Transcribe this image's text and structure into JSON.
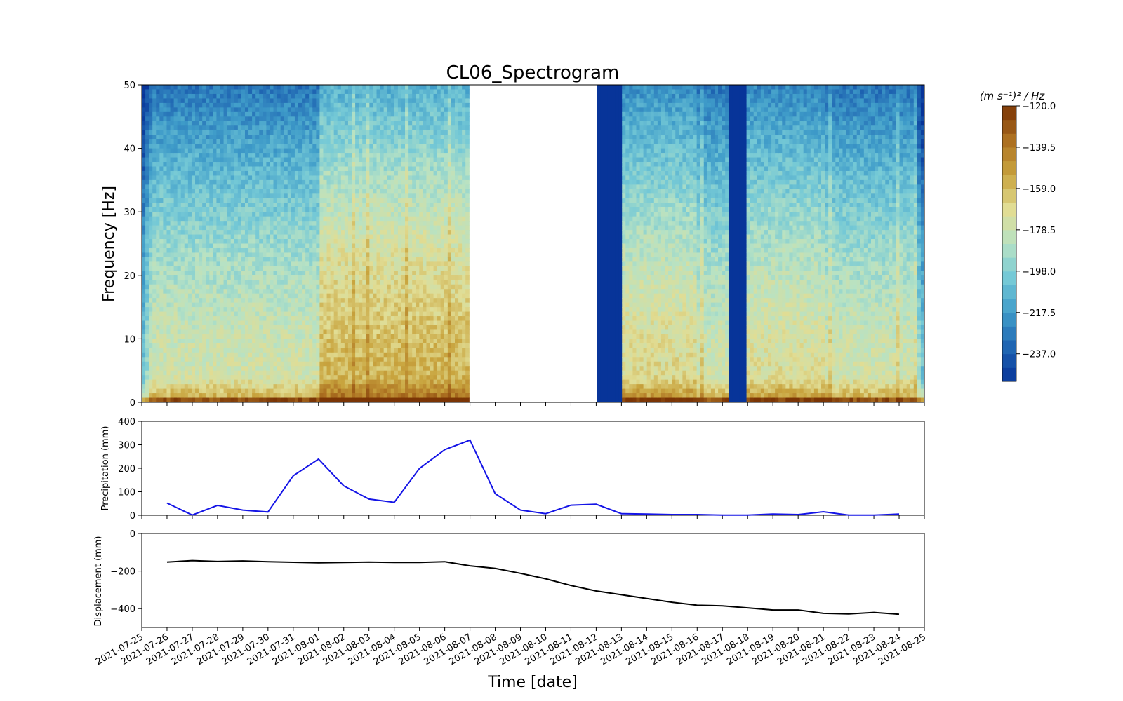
{
  "chart_data": [
    {
      "type": "heatmap",
      "title": "CL06_Spectrogram",
      "xlabel": "",
      "ylabel": "Frequency [Hz]",
      "ylim": [
        0,
        50
      ],
      "yticks": [
        0,
        10,
        20,
        30,
        40,
        50
      ],
      "colorbar": {
        "label": "(m s⁻¹)² / Hz",
        "ticks": [
          "−120.0",
          "−139.5",
          "−159.0",
          "−178.5",
          "−198.0",
          "−217.5",
          "−237.0"
        ],
        "range": [
          -250,
          -120
        ],
        "colormap": [
          "#073499",
          "#1f65b2",
          "#3f9cc9",
          "#75c9d6",
          "#b7e2c4",
          "#e1dd94",
          "#c9a53f",
          "#ac7021",
          "#7b3505"
        ]
      },
      "gaps": [
        {
          "type": "no-data",
          "start": "2021-08-07",
          "end": "2021-08-12"
        },
        {
          "type": "blue-band",
          "start": "2021-08-12",
          "end": "2021-08-13"
        },
        {
          "type": "blue-band",
          "start": "2021-08-17.2",
          "end": "2021-08-18"
        }
      ]
    },
    {
      "type": "line",
      "xlabel": "",
      "ylabel": "Precipitation (mm)",
      "ylim": [
        0,
        400
      ],
      "yticks": [
        0,
        100,
        200,
        300,
        400
      ],
      "series": [
        {
          "color": "#1414e6",
          "x": [
            "2021-07-26",
            "2021-07-27",
            "2021-07-28",
            "2021-07-29",
            "2021-07-30",
            "2021-07-31",
            "2021-08-01",
            "2021-08-02",
            "2021-08-03",
            "2021-08-04",
            "2021-08-05",
            "2021-08-06",
            "2021-08-07",
            "2021-08-08",
            "2021-08-09",
            "2021-08-10",
            "2021-08-11",
            "2021-08-12",
            "2021-08-13",
            "2021-08-14",
            "2021-08-15",
            "2021-08-16",
            "2021-08-17",
            "2021-08-18",
            "2021-08-19",
            "2021-08-20",
            "2021-08-21",
            "2021-08-22",
            "2021-08-23",
            "2021-08-24"
          ],
          "values": [
            52,
            1,
            42,
            22,
            14,
            168,
            239,
            125,
            69,
            55,
            199,
            279,
            320,
            92,
            22,
            7,
            43,
            47,
            7,
            5,
            3,
            3,
            1,
            1,
            5,
            3,
            15,
            1,
            1,
            5
          ]
        }
      ]
    },
    {
      "type": "line",
      "xlabel": "Time [date]",
      "ylabel": "Displacement (mm)",
      "ylim": [
        -500,
        0
      ],
      "yticks": [
        0,
        -200,
        -400
      ],
      "ytick_labels": [
        "0",
        "−200",
        "−400"
      ],
      "series": [
        {
          "color": "#000000",
          "x": [
            "2021-07-26",
            "2021-07-27",
            "2021-07-28",
            "2021-07-29",
            "2021-07-30",
            "2021-07-31",
            "2021-08-01",
            "2021-08-02",
            "2021-08-03",
            "2021-08-04",
            "2021-08-05",
            "2021-08-06",
            "2021-08-07",
            "2021-08-08",
            "2021-08-09",
            "2021-08-10",
            "2021-08-11",
            "2021-08-12",
            "2021-08-13",
            "2021-08-14",
            "2021-08-15",
            "2021-08-16",
            "2021-08-17",
            "2021-08-18",
            "2021-08-19",
            "2021-08-20",
            "2021-08-21",
            "2021-08-22",
            "2021-08-23",
            "2021-08-24"
          ],
          "values": [
            -152,
            -144,
            -149,
            -146,
            -150,
            -153,
            -156,
            -154,
            -152,
            -154,
            -154,
            -150,
            -172,
            -186,
            -212,
            -241,
            -277,
            -306,
            -326,
            -346,
            -366,
            -382,
            -385,
            -396,
            -407,
            -407,
            -425,
            -428,
            -420,
            -430
          ]
        }
      ],
      "xtick_labels": [
        "2021-07-25",
        "2021-07-26",
        "2021-07-27",
        "2021-07-28",
        "2021-07-29",
        "2021-07-30",
        "2021-07-31",
        "2021-08-01",
        "2021-08-02",
        "2021-08-03",
        "2021-08-04",
        "2021-08-05",
        "2021-08-06",
        "2021-08-07",
        "2021-08-08",
        "2021-08-09",
        "2021-08-10",
        "2021-08-11",
        "2021-08-12",
        "2021-08-13",
        "2021-08-14",
        "2021-08-15",
        "2021-08-16",
        "2021-08-17",
        "2021-08-18",
        "2021-08-19",
        "2021-08-20",
        "2021-08-21",
        "2021-08-22",
        "2021-08-23",
        "2021-08-24",
        "2021-08-25"
      ]
    }
  ]
}
